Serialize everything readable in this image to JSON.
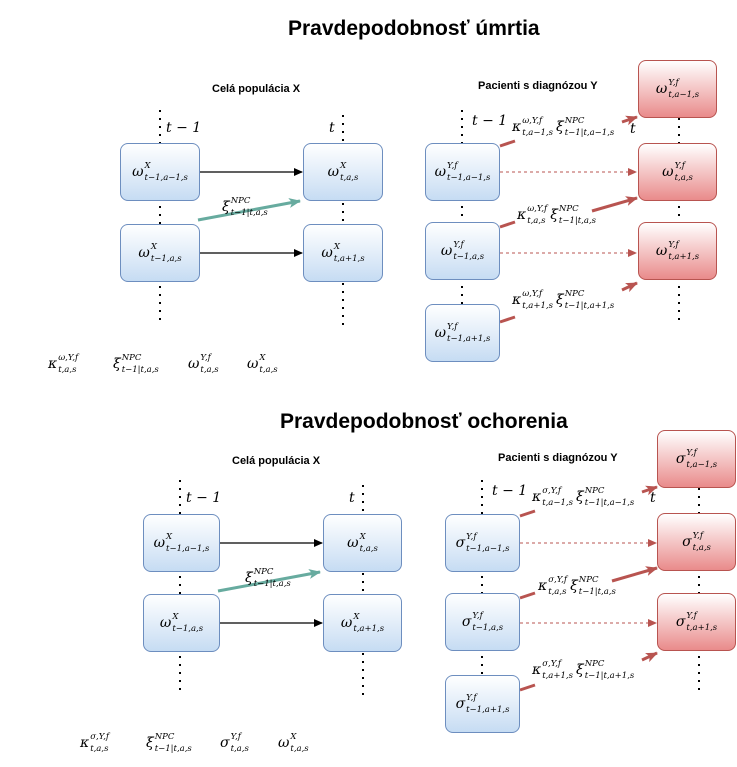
{
  "panels": [
    {
      "title": "Pravdepodobnosť úmrtia",
      "left_header": "Celá populácia X",
      "right_header": "Pacienti s diagnózou Y",
      "time_left": "t − 1",
      "time_right": "t",
      "time_left2": "t − 1",
      "time_right2": "t",
      "left_boxes": [
        {
          "base": "ω",
          "sup": "X",
          "sub": "t−1,a−1,s"
        },
        {
          "base": "ω",
          "sup": "X",
          "sub": "t−1,a,s"
        }
      ],
      "left_targets": [
        {
          "base": "ω",
          "sup": "X",
          "sub": "t,a,s"
        },
        {
          "base": "ω",
          "sup": "X",
          "sub": "t,a+1,s"
        }
      ],
      "left_arrow_label": {
        "base": "ξ",
        "sup": "NPC",
        "sub": "t−1|t,a,s"
      },
      "right_sources": [
        {
          "base": "ω",
          "sup": "Y,f",
          "sub": "t−1,a−1,s"
        },
        {
          "base": "ω",
          "sup": "Y,f",
          "sub": "t−1,a,s"
        },
        {
          "base": "ω",
          "sup": "Y,f",
          "sub": "t−1,a+1,s"
        }
      ],
      "right_targets": [
        {
          "base": "ω",
          "sup": "Y,f",
          "sub": "t,a−1,s"
        },
        {
          "base": "ω",
          "sup": "Y,f",
          "sub": "t,a,s"
        },
        {
          "base": "ω",
          "sup": "Y,f",
          "sub": "t,a+1,s"
        }
      ],
      "right_arrow_labels": [
        {
          "k_base": "κ",
          "k_sup": "ω,Y,f",
          "k_sub": "t,a−1,s",
          "x_base": "ξ",
          "x_sup": "NPC",
          "x_sub": "t−1|t,a−1,s"
        },
        {
          "k_base": "κ",
          "k_sup": "ω,Y,f",
          "k_sub": "t,a,s",
          "x_base": "ξ",
          "x_sup": "NPC",
          "x_sub": "t−1|t,a,s"
        },
        {
          "k_base": "κ",
          "k_sup": "ω,Y,f",
          "k_sub": "t,a+1,s",
          "x_base": "ξ",
          "x_sup": "NPC",
          "x_sub": "t−1|t,a+1,s"
        }
      ],
      "legend": [
        {
          "base": "κ",
          "sup": "ω,Y,f",
          "sub": "t,a,s"
        },
        {
          "base": "ξ",
          "sup": "NPC",
          "sub": "t−1|t,a,s"
        },
        {
          "base": "ω",
          "sup": "Y,f",
          "sub": "t,a,s"
        },
        {
          "base": "ω",
          "sup": "X",
          "sub": "t,a,s"
        }
      ]
    },
    {
      "title": "Pravdepodobnosť ochorenia",
      "left_header": "Celá populácia X",
      "right_header": "Pacienti s diagnózou Y",
      "time_left": "t − 1",
      "time_right": "t",
      "time_left2": "t − 1",
      "time_right2": "t",
      "left_boxes": [
        {
          "base": "ω",
          "sup": "X",
          "sub": "t−1,a−1,s"
        },
        {
          "base": "ω",
          "sup": "X",
          "sub": "t−1,a,s"
        }
      ],
      "left_targets": [
        {
          "base": "ω",
          "sup": "X",
          "sub": "t,a,s"
        },
        {
          "base": "ω",
          "sup": "X",
          "sub": "t,a+1,s"
        }
      ],
      "left_arrow_label": {
        "base": "ξ",
        "sup": "NPC",
        "sub": "t−1|t,a,s"
      },
      "right_sources": [
        {
          "base": "σ",
          "sup": "Y,f",
          "sub": "t−1,a−1,s"
        },
        {
          "base": "σ",
          "sup": "Y,f",
          "sub": "t−1,a,s"
        },
        {
          "base": "σ",
          "sup": "Y,f",
          "sub": "t−1,a+1,s"
        }
      ],
      "right_targets": [
        {
          "base": "σ",
          "sup": "Y,f",
          "sub": "t,a−1,s"
        },
        {
          "base": "σ",
          "sup": "Y,f",
          "sub": "t,a,s"
        },
        {
          "base": "σ",
          "sup": "Y,f",
          "sub": "t,a+1,s"
        }
      ],
      "right_arrow_labels": [
        {
          "k_base": "κ",
          "k_sup": "σ,Y,f",
          "k_sub": "t,a−1,s",
          "x_base": "ξ",
          "x_sup": "NPC",
          "x_sub": "t−1|t,a−1,s"
        },
        {
          "k_base": "κ",
          "k_sup": "σ,Y,f",
          "k_sub": "t,a,s",
          "x_base": "ξ",
          "x_sup": "NPC",
          "x_sub": "t−1|t,a,s"
        },
        {
          "k_base": "κ",
          "k_sup": "σ,Y,f",
          "k_sub": "t,a+1,s",
          "x_base": "ξ",
          "x_sup": "NPC",
          "x_sub": "t−1|t,a+1,s"
        }
      ],
      "legend": [
        {
          "base": "κ",
          "sup": "σ,Y,f",
          "sub": "t,a,s"
        },
        {
          "base": "ξ",
          "sup": "NPC",
          "sub": "t−1|t,a,s"
        },
        {
          "base": "σ",
          "sup": "Y,f",
          "sub": "t,a,s"
        },
        {
          "base": "ω",
          "sup": "X",
          "sub": "t,a,s"
        }
      ]
    }
  ],
  "colors": {
    "blue_fill": "#c6dcf3",
    "blue_border": "#6d8ebf",
    "red_fill": "#e98b8b",
    "red_border": "#b85450",
    "green_arrow": "#67ab9f",
    "red_arrow": "#b85450",
    "black_arrow": "#000000"
  }
}
